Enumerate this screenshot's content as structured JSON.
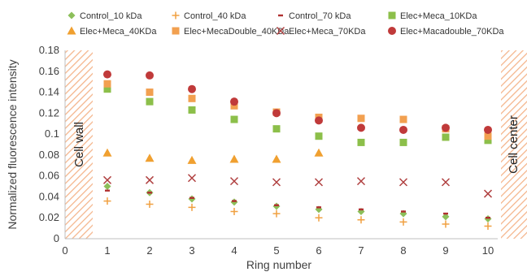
{
  "chart_data": {
    "type": "scatter",
    "xlabel": "Ring number",
    "ylabel": "Normalized fluorescence intensity",
    "xlim": [
      0,
      11
    ],
    "ylim": [
      0,
      0.18
    ],
    "xticks": [
      "0",
      "1",
      "2",
      "3",
      "4",
      "5",
      "6",
      "7",
      "8",
      "9",
      "10"
    ],
    "yticks": [
      "0",
      "0.02",
      "0.04",
      "0.06",
      "0.08",
      "0.1",
      "0.12",
      "0.14",
      "0.16",
      "0.18"
    ],
    "grid": false,
    "legend_position": "top",
    "annotations": {
      "left": "Cell wall",
      "right": "Cell center"
    },
    "x": [
      1,
      2,
      3,
      4,
      5,
      6,
      7,
      8,
      9,
      10
    ],
    "series": [
      {
        "name": "Control_10 kDa",
        "marker": "diamond",
        "color": "#8cbf5a",
        "values": [
          0.05,
          0.044,
          0.038,
          0.035,
          0.031,
          0.028,
          0.026,
          0.024,
          0.021,
          0.019
        ]
      },
      {
        "name": "Control_40 kDa",
        "marker": "plus",
        "color": "#f0a040",
        "values": [
          0.036,
          0.033,
          0.03,
          0.026,
          0.024,
          0.02,
          0.018,
          0.016,
          0.014,
          0.012
        ]
      },
      {
        "name": "Control_70 kDa",
        "marker": "dash",
        "color": "#b03030",
        "values": [
          0.046,
          0.044,
          0.039,
          0.036,
          0.032,
          0.03,
          0.028,
          0.026,
          0.024,
          0.02
        ]
      },
      {
        "name": "Elec+Meca_10KDa",
        "marker": "square",
        "color": "#8cbf4a",
        "values": [
          0.143,
          0.131,
          0.123,
          0.114,
          0.105,
          0.098,
          0.092,
          0.092,
          0.097,
          0.094
        ]
      },
      {
        "name": "Elec+Meca_40KDa",
        "marker": "triangle",
        "color": "#f0a030",
        "values": [
          0.082,
          0.077,
          0.075,
          0.076,
          0.076,
          0.082,
          null,
          null,
          null,
          null
        ]
      },
      {
        "name": "Elec+MecaDouble_40KDa",
        "marker": "square",
        "color": "#f2a050",
        "values": [
          0.148,
          0.14,
          0.134,
          0.127,
          0.121,
          0.116,
          0.115,
          0.114,
          0.105,
          0.098
        ]
      },
      {
        "name": "Elec+Meca_70KDa",
        "marker": "x",
        "color": "#b04040",
        "values": [
          0.056,
          0.056,
          0.058,
          0.055,
          0.054,
          0.054,
          0.055,
          0.054,
          0.054,
          0.043
        ]
      },
      {
        "name": "Elec+Macadouble_70KDa",
        "marker": "circle",
        "color": "#c03a3a",
        "values": [
          0.157,
          0.156,
          0.143,
          0.131,
          0.12,
          0.113,
          0.106,
          0.104,
          0.106,
          0.104
        ]
      }
    ]
  }
}
